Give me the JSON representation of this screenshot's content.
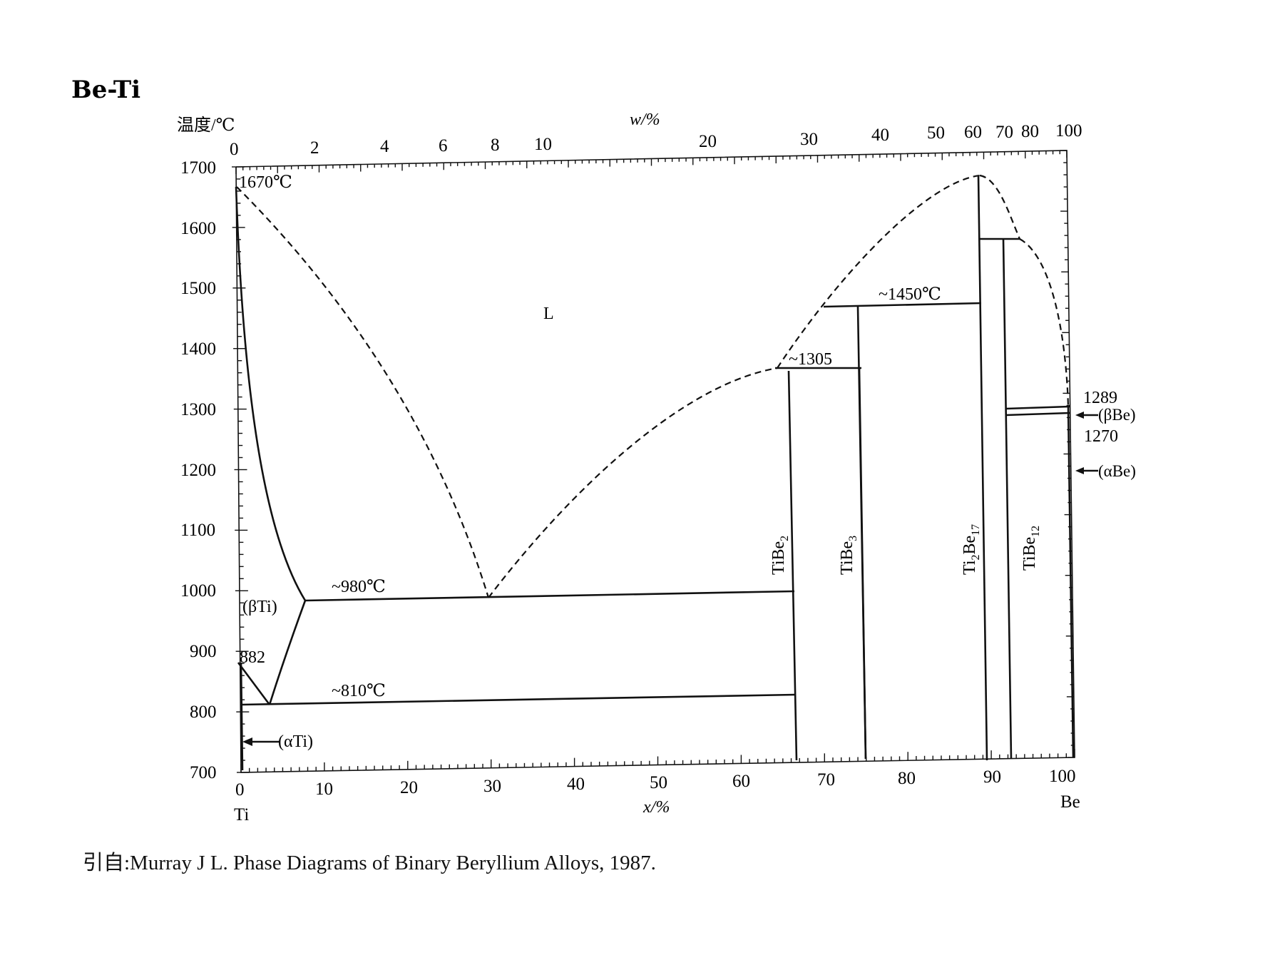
{
  "title": "Be-Ti",
  "y_axis_title": "温度/℃",
  "top_axis_title": "w/%",
  "bottom_axis_title": "x/%",
  "left_element": "Ti",
  "right_element": "Be",
  "y_ticks": [
    "1700",
    "1600",
    "1500",
    "1400",
    "1300",
    "1200",
    "1100",
    "1000",
    "900",
    "800",
    "700"
  ],
  "top_ticks": [
    "0",
    "2",
    "4",
    "6",
    "8",
    "10",
    "20",
    "30",
    "40",
    "50",
    "60",
    "70",
    "80",
    "100"
  ],
  "bottom_ticks": [
    "0",
    "10",
    "20",
    "30",
    "40",
    "50",
    "60",
    "70",
    "80",
    "90",
    "100"
  ],
  "labels": {
    "ti_melting": "1670℃",
    "liquid": "L",
    "beta_ti": "(βTi)",
    "ti_transition": "882",
    "alpha_ti": "(αTi)",
    "eutectic_980": "~980℃",
    "eutectoid_810": "~810℃",
    "peritectic_1305": "~1305",
    "peritectic_1450": "~1450℃",
    "be_1289": "1289",
    "be_1270": "1270",
    "beta_be": "(βBe)",
    "alpha_be": "(αBe)",
    "tibe2": {
      "base": "TiBe",
      "sub": "2"
    },
    "tibe3": {
      "base": "TiBe",
      "sub": "3"
    },
    "ti2be17": {
      "base1": "Ti",
      "sub1": "2",
      "base2": "Be",
      "sub2": "17"
    },
    "tibe12": {
      "base": "TiBe",
      "sub": "12"
    }
  },
  "caption": "引自:Murray J L.  Phase Diagrams of Binary Beryllium Alloys, 1987."
}
